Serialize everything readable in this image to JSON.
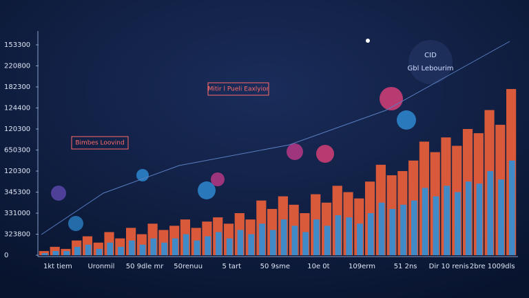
{
  "chart_data": {
    "type": "bar",
    "annotations": [
      "Bimbes Loovind",
      "Mitir l Pueli Eaxlyior",
      "Gbl Lebourim",
      "CID"
    ],
    "categories": [
      "1kt tiem",
      null,
      null,
      null,
      "Uronmil",
      null,
      null,
      null,
      "50 9dle mr",
      null,
      null,
      null,
      "50renuu",
      null,
      null,
      null,
      "5 tart",
      null,
      null,
      null,
      "50 9sme",
      null,
      null,
      null,
      "10e 0t",
      null,
      null,
      null,
      "109erm",
      null,
      null,
      null,
      "51 2ns",
      null,
      null,
      null,
      "Dir 10 renis",
      null,
      null,
      null,
      "2bre 1009dls",
      null,
      null,
      null
    ],
    "series": [
      {
        "color": "#f0603a",
        "values": [
          0.2,
          0.4,
          0.3,
          0.7,
          0.9,
          0.6,
          1.1,
          0.8,
          1.3,
          1.0,
          1.5,
          1.2,
          1.4,
          1.7,
          1.3,
          1.6,
          1.8,
          1.5,
          2.0,
          1.7,
          2.6,
          2.2,
          2.8,
          2.4,
          2.0,
          2.9,
          2.5,
          3.3,
          3.0,
          2.7,
          3.5,
          4.3,
          3.8,
          4.0,
          4.5,
          5.4,
          4.9,
          5.6,
          5.2,
          6.0,
          5.8,
          6.9,
          6.2,
          7.9
        ]
      },
      {
        "color": "#2f8fd8",
        "values": [
          0.1,
          0.2,
          0.2,
          0.4,
          0.5,
          0.3,
          0.6,
          0.4,
          0.7,
          0.5,
          0.8,
          0.6,
          0.8,
          1.0,
          0.7,
          0.9,
          1.1,
          0.8,
          1.2,
          1.0,
          1.5,
          1.2,
          1.7,
          1.4,
          1.1,
          1.7,
          1.4,
          1.9,
          1.8,
          1.5,
          2.0,
          2.5,
          2.2,
          2.4,
          2.6,
          3.2,
          2.8,
          3.3,
          3.0,
          3.5,
          3.4,
          4.0,
          3.6,
          4.5
        ]
      }
    ],
    "ylim": [
      0,
      10
    ],
    "yticks": [
      {
        "value": 0,
        "label": "0"
      },
      {
        "value": 1,
        "label": "323800"
      },
      {
        "value": 2,
        "label": "331000"
      },
      {
        "value": 3,
        "label": "345300"
      },
      {
        "value": 4,
        "label": "120300"
      },
      {
        "value": 5,
        "label": "650300"
      },
      {
        "value": 6,
        "label": "120300"
      },
      {
        "value": 7,
        "label": "124400"
      },
      {
        "value": 8,
        "label": "182300"
      },
      {
        "value": 9,
        "label": "220800"
      },
      {
        "value": 10,
        "label": "153300"
      }
    ]
  }
}
